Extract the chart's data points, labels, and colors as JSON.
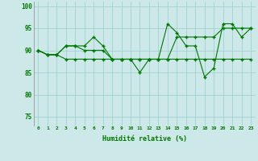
{
  "x": [
    0,
    1,
    2,
    3,
    4,
    5,
    6,
    7,
    8,
    9,
    10,
    11,
    12,
    13,
    14,
    15,
    16,
    17,
    18,
    19,
    20,
    21,
    22,
    23
  ],
  "line1": [
    90,
    89,
    89,
    91,
    91,
    91,
    93,
    91,
    88,
    88,
    88,
    85,
    88,
    88,
    96,
    94,
    91,
    91,
    84,
    86,
    96,
    96,
    93,
    95
  ],
  "line2": [
    90,
    89,
    89,
    91,
    91,
    90,
    90,
    90,
    88,
    88,
    88,
    88,
    88,
    88,
    88,
    93,
    93,
    93,
    93,
    93,
    95,
    95,
    95,
    95
  ],
  "line3": [
    90,
    89,
    89,
    88,
    88,
    88,
    88,
    88,
    88,
    88,
    88,
    88,
    88,
    88,
    88,
    88,
    88,
    88,
    88,
    88,
    88,
    88,
    88,
    88
  ],
  "bg_color": "#cce8e8",
  "line_color": "#007700",
  "grid_color": "#99cccc",
  "xlabel": "Humidité relative (%)",
  "ylim": [
    73,
    101
  ],
  "xlim": [
    -0.5,
    23.5
  ],
  "yticks": [
    75,
    80,
    85,
    90,
    95,
    100
  ],
  "xticks": [
    0,
    1,
    2,
    3,
    4,
    5,
    6,
    7,
    8,
    9,
    10,
    11,
    12,
    13,
    14,
    15,
    16,
    17,
    18,
    19,
    20,
    21,
    22,
    23
  ],
  "figsize": [
    3.2,
    2.0
  ],
  "dpi": 100
}
